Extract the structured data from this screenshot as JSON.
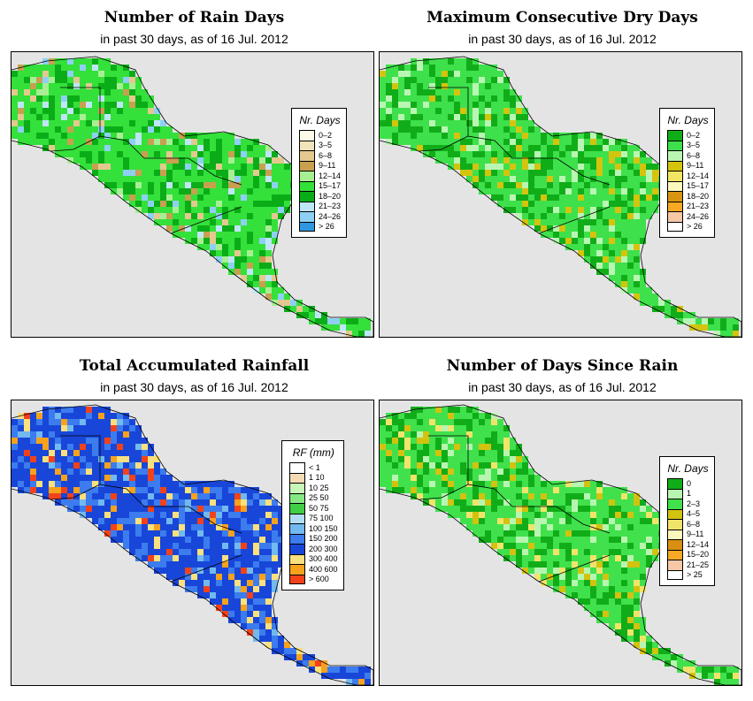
{
  "panels": [
    {
      "title": "Number of Rain Days",
      "subtitle": "in past 30 days, as of  16 Jul. 2012",
      "legend": {
        "title": "Nr. Days",
        "entries": [
          {
            "label": "0–2",
            "color": "#fdfbe8"
          },
          {
            "label": "3–5",
            "color": "#f1e4bb"
          },
          {
            "label": "6–8",
            "color": "#e3c98f"
          },
          {
            "label": "9–11",
            "color": "#c8a050"
          },
          {
            "label": "12–14",
            "color": "#a8ef94"
          },
          {
            "label": "15–17",
            "color": "#34e03a"
          },
          {
            "label": "18–20",
            "color": "#0aad17"
          },
          {
            "label": "21–23",
            "color": "#bfe6f7"
          },
          {
            "label": "24–26",
            "color": "#8ed0f3"
          },
          {
            "label": "> 26",
            "color": "#2e97df"
          }
        ]
      }
    },
    {
      "title": "Maximum Consecutive Dry Days",
      "subtitle": "in past 30 days, as of  16 Jul. 2012",
      "legend": {
        "title": "Nr. Days",
        "entries": [
          {
            "label": "0–2",
            "color": "#11ad19"
          },
          {
            "label": "3–5",
            "color": "#3ee04b"
          },
          {
            "label": "6–8",
            "color": "#baf6b3"
          },
          {
            "label": "9–11",
            "color": "#d4c40e"
          },
          {
            "label": "12–14",
            "color": "#f2e564"
          },
          {
            "label": "15–17",
            "color": "#fbf9bc"
          },
          {
            "label": "18–20",
            "color": "#d99512"
          },
          {
            "label": "21–23",
            "color": "#f7a824"
          },
          {
            "label": "24–26",
            "color": "#f6c8a6"
          },
          {
            "label": "> 26",
            "color": "#ffffff"
          }
        ]
      }
    },
    {
      "title": "Total Accumulated Rainfall",
      "subtitle": "in past 30 days, as of  16 Jul. 2012",
      "legend": {
        "title": "RF (mm)",
        "entries": [
          {
            "label": "< 1",
            "color": "#ffffff"
          },
          {
            "label": "1   10",
            "color": "#f4dbb3"
          },
          {
            "label": "10   25",
            "color": "#c7f6b8"
          },
          {
            "label": "25   50",
            "color": "#85e882"
          },
          {
            "label": "50   75",
            "color": "#41cd45"
          },
          {
            "label": "75   100",
            "color": "#b3ddf5"
          },
          {
            "label": "100   150",
            "color": "#72b9f0"
          },
          {
            "label": "150   200",
            "color": "#3c7cee"
          },
          {
            "label": "200   300",
            "color": "#1846d9"
          },
          {
            "label": "300   400",
            "color": "#fbe07e"
          },
          {
            "label": "400   600",
            "color": "#f7a21c"
          },
          {
            "label": "> 600",
            "color": "#f3421a"
          }
        ]
      }
    },
    {
      "title": "Number of Days Since Rain",
      "subtitle": "in past 30 days, as of  16 Jul. 2012",
      "legend": {
        "title": "Nr. Days",
        "entries": [
          {
            "label": "0",
            "color": "#11ad19"
          },
          {
            "label": "1",
            "color": "#b8f5b0"
          },
          {
            "label": "2–3",
            "color": "#40e14c"
          },
          {
            "label": "4–5",
            "color": "#d3c20f"
          },
          {
            "label": "6–8",
            "color": "#f1e46a"
          },
          {
            "label": "9–11",
            "color": "#fbf8bd"
          },
          {
            "label": "12–14",
            "color": "#d98f12"
          },
          {
            "label": "15–20",
            "color": "#f7a824"
          },
          {
            "label": "21–25",
            "color": "#f6c8a6"
          },
          {
            "label": "> 25",
            "color": "#ffffff"
          }
        ]
      }
    }
  ],
  "colors": {
    "sea": "#e4e4e4",
    "land1": [
      "#34e03a",
      "#0aad17",
      "#a8ef94",
      "#bfe6f7",
      "#8ed0f3",
      "#c8a050",
      "#e3c98f"
    ],
    "land2": [
      "#3ee04b",
      "#11ad19",
      "#baf6b3",
      "#d4c40e"
    ],
    "land3": [
      "#1846d9",
      "#3c7cee",
      "#72b9f0",
      "#f7a21c",
      "#fbe07e",
      "#f3421a"
    ],
    "land4": [
      "#40e14c",
      "#11ad19",
      "#b8f5b0",
      "#d3c20f",
      "#f1e46a"
    ]
  }
}
